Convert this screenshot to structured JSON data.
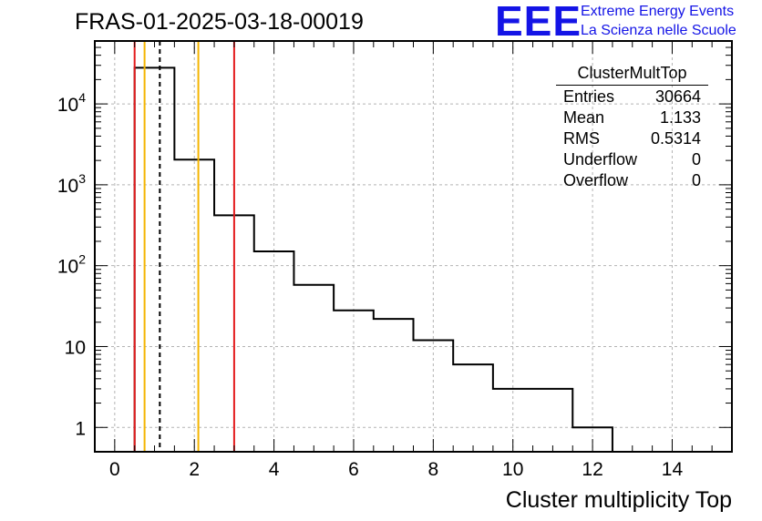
{
  "header": {
    "title": "FRAS-01-2025-03-18-00019",
    "logo_mark": "EEE",
    "logo_line1": "Extreme Energy Events",
    "logo_line2": "La Scienza nelle Scuole"
  },
  "stats": {
    "title": "ClusterMultTop",
    "rows": [
      {
        "label": "Entries",
        "value": "30664"
      },
      {
        "label": "Mean",
        "value": "1.133"
      },
      {
        "label": "RMS",
        "value": "0.5314"
      },
      {
        "label": "Underflow",
        "value": "0"
      },
      {
        "label": "Overflow",
        "value": "0"
      }
    ]
  },
  "colors": {
    "red_line": "#e31a1c",
    "orange_line": "#f4b400",
    "histogram": "#000000",
    "logo": "#1414e6",
    "grid": "#b4b4b4"
  },
  "chart_data": {
    "type": "histogram",
    "title": "FRAS-01-2025-03-18-00019",
    "xlabel": "Cluster multiplicity Top",
    "ylabel": "",
    "xlim": [
      -0.5,
      15.5
    ],
    "ylim": [
      0.5,
      60000
    ],
    "yscale": "log",
    "grid": true,
    "bins": [
      {
        "low": 0.5,
        "high": 1.5,
        "count": 28000
      },
      {
        "low": 1.5,
        "high": 2.5,
        "count": 2050
      },
      {
        "low": 2.5,
        "high": 3.5,
        "count": 420
      },
      {
        "low": 3.5,
        "high": 4.5,
        "count": 150
      },
      {
        "low": 4.5,
        "high": 5.5,
        "count": 58
      },
      {
        "low": 5.5,
        "high": 6.5,
        "count": 28
      },
      {
        "low": 6.5,
        "high": 7.5,
        "count": 22
      },
      {
        "low": 7.5,
        "high": 8.5,
        "count": 12
      },
      {
        "low": 8.5,
        "high": 9.5,
        "count": 6
      },
      {
        "low": 9.5,
        "high": 11.5,
        "count": 3
      },
      {
        "low": 11.5,
        "high": 12.5,
        "count": 1
      }
    ],
    "x_ticks": [
      {
        "value": 0,
        "label": "0"
      },
      {
        "value": 2,
        "label": "2"
      },
      {
        "value": 4,
        "label": "4"
      },
      {
        "value": 6,
        "label": "6"
      },
      {
        "value": 8,
        "label": "8"
      },
      {
        "value": 10,
        "label": "10"
      },
      {
        "value": 12,
        "label": "12"
      },
      {
        "value": 14,
        "label": "14"
      }
    ],
    "y_ticks": [
      {
        "value": 1,
        "label": "1",
        "exp": ""
      },
      {
        "value": 10,
        "label": "10",
        "exp": ""
      },
      {
        "value": 100,
        "label": "10",
        "exp": "2"
      },
      {
        "value": 1000,
        "label": "10",
        "exp": "3"
      },
      {
        "value": 10000,
        "label": "10",
        "exp": "4"
      }
    ],
    "vertical_lines": [
      {
        "x": 0.5,
        "color": "red",
        "style": "solid"
      },
      {
        "x": 0.75,
        "color": "orange",
        "style": "solid"
      },
      {
        "x": 1.133,
        "color": "black",
        "style": "dashed"
      },
      {
        "x": 2.1,
        "color": "orange",
        "style": "solid"
      },
      {
        "x": 3.0,
        "color": "red",
        "style": "solid"
      }
    ]
  }
}
